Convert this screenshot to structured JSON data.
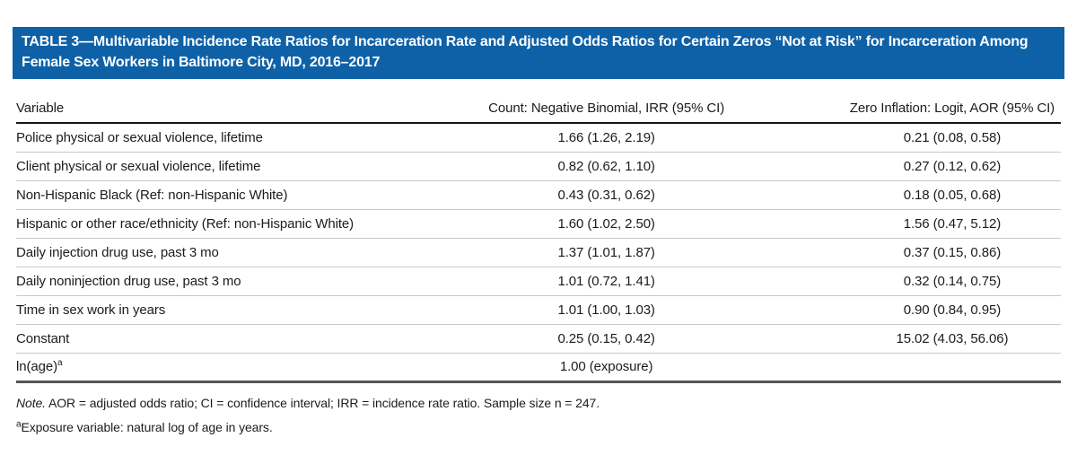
{
  "table": {
    "title": "TABLE 3—Multivariable Incidence Rate Ratios for Incarceration Rate and Adjusted Odds Ratios for Certain Zeros “Not at Risk” for Incarceration Among Female Sex Workers in Baltimore City, MD, 2016–2017",
    "columns": [
      "Variable",
      "Count: Negative Binomial, IRR (95% CI)",
      "Zero Inflation: Logit, AOR (95% CI)"
    ],
    "rows": [
      {
        "variable": "Police physical or sexual violence, lifetime",
        "sup": "",
        "irr": "1.66 (1.26, 2.19)",
        "aor": "0.21 (0.08, 0.58)"
      },
      {
        "variable": "Client physical or sexual violence, lifetime",
        "sup": "",
        "irr": "0.82 (0.62, 1.10)",
        "aor": "0.27 (0.12, 0.62)"
      },
      {
        "variable": "Non-Hispanic Black (Ref: non-Hispanic White)",
        "sup": "",
        "irr": "0.43 (0.31, 0.62)",
        "aor": "0.18 (0.05, 0.68)"
      },
      {
        "variable": "Hispanic or other race/ethnicity (Ref: non-Hispanic White)",
        "sup": "",
        "irr": "1.60 (1.02, 2.50)",
        "aor": "1.56 (0.47, 5.12)"
      },
      {
        "variable": "Daily injection drug use, past 3 mo",
        "sup": "",
        "irr": "1.37 (1.01, 1.87)",
        "aor": "0.37 (0.15, 0.86)"
      },
      {
        "variable": "Daily noninjection drug use, past 3 mo",
        "sup": "",
        "irr": "1.01 (0.72, 1.41)",
        "aor": "0.32 (0.14, 0.75)"
      },
      {
        "variable": "Time in sex work in years",
        "sup": "",
        "irr": "1.01 (1.00, 1.03)",
        "aor": "0.90 (0.84, 0.95)"
      },
      {
        "variable": "Constant",
        "sup": "",
        "irr": "0.25 (0.15, 0.42)",
        "aor": "15.02 (4.03, 56.06)"
      },
      {
        "variable": "ln(age)",
        "sup": "a",
        "irr": "1.00 (exposure)",
        "aor": ""
      }
    ],
    "note": {
      "label": "Note.",
      "text": "AOR = adjusted odds ratio; CI = confidence interval; IRR = incidence rate ratio. Sample size n = 247."
    },
    "footnote": {
      "marker": "a",
      "text": "Exposure variable: natural log of age in years."
    },
    "accent_color": "#0e61a7"
  }
}
